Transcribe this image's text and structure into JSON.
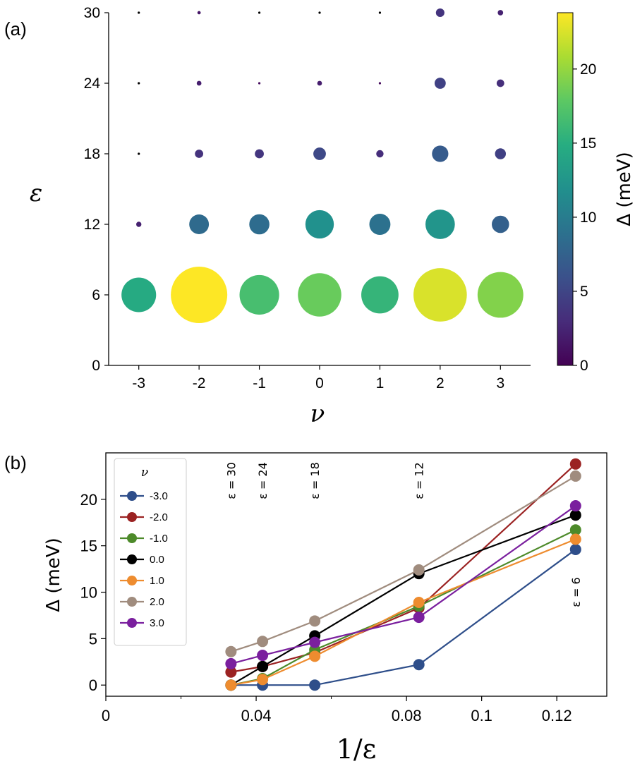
{
  "chart_data": [
    {
      "panel_label": "(a)",
      "type": "scatter",
      "xlabel": "ν",
      "ylabel": "ε",
      "x_ticks": [
        "-3",
        "-2",
        "-1",
        "0",
        "1",
        "2",
        "3"
      ],
      "y_ticks": [
        "0",
        "6",
        "12",
        "18",
        "24",
        "30"
      ],
      "xlim": [
        -3.5,
        3.5
      ],
      "ylim": [
        0,
        30
      ],
      "colorbar": {
        "label": "Δ (meV)",
        "range": [
          0,
          23.8
        ],
        "ticks": [
          "0",
          "5",
          "10",
          "15",
          "20"
        ],
        "colormap": [
          "#440154",
          "#472c7a",
          "#3b518b",
          "#2c718e",
          "#21908d",
          "#27ad81",
          "#5cc863",
          "#aadc32",
          "#fde725"
        ]
      },
      "points": [
        {
          "nu": -3,
          "eps": 30,
          "delta": 0.0
        },
        {
          "nu": -2,
          "eps": 30,
          "delta": 1.4
        },
        {
          "nu": -1,
          "eps": 30,
          "delta": 0.0
        },
        {
          "nu": 0,
          "eps": 30,
          "delta": 0.0
        },
        {
          "nu": 1,
          "eps": 30,
          "delta": 0.0
        },
        {
          "nu": 2,
          "eps": 30,
          "delta": 3.6
        },
        {
          "nu": 3,
          "eps": 30,
          "delta": 2.3
        },
        {
          "nu": -3,
          "eps": 24,
          "delta": 0.0
        },
        {
          "nu": -2,
          "eps": 24,
          "delta": 2.0
        },
        {
          "nu": -1,
          "eps": 24,
          "delta": 0.7
        },
        {
          "nu": 0,
          "eps": 24,
          "delta": 2.0
        },
        {
          "nu": 1,
          "eps": 24,
          "delta": 0.6
        },
        {
          "nu": 2,
          "eps": 24,
          "delta": 4.7
        },
        {
          "nu": 3,
          "eps": 24,
          "delta": 3.2
        },
        {
          "nu": -3,
          "eps": 18,
          "delta": 0.0
        },
        {
          "nu": -2,
          "eps": 18,
          "delta": 3.5
        },
        {
          "nu": -1,
          "eps": 18,
          "delta": 3.8
        },
        {
          "nu": 0,
          "eps": 18,
          "delta": 5.3
        },
        {
          "nu": 1,
          "eps": 18,
          "delta": 3.1
        },
        {
          "nu": 2,
          "eps": 18,
          "delta": 6.9
        },
        {
          "nu": 3,
          "eps": 18,
          "delta": 4.6
        },
        {
          "nu": -3,
          "eps": 12,
          "delta": 2.2
        },
        {
          "nu": -2,
          "eps": 12,
          "delta": 8.3
        },
        {
          "nu": -1,
          "eps": 12,
          "delta": 8.5
        },
        {
          "nu": 0,
          "eps": 12,
          "delta": 12.0
        },
        {
          "nu": 1,
          "eps": 12,
          "delta": 8.9
        },
        {
          "nu": 2,
          "eps": 12,
          "delta": 12.4
        },
        {
          "nu": 3,
          "eps": 12,
          "delta": 7.3
        },
        {
          "nu": -3,
          "eps": 6,
          "delta": 14.6
        },
        {
          "nu": -2,
          "eps": 6,
          "delta": 23.8
        },
        {
          "nu": -1,
          "eps": 6,
          "delta": 16.7
        },
        {
          "nu": 0,
          "eps": 6,
          "delta": 18.3
        },
        {
          "nu": 1,
          "eps": 6,
          "delta": 15.7
        },
        {
          "nu": 2,
          "eps": 6,
          "delta": 22.5
        },
        {
          "nu": 3,
          "eps": 6,
          "delta": 19.3
        }
      ]
    },
    {
      "panel_label": "(b)",
      "type": "line",
      "xlabel": "1/ε",
      "ylabel": "Δ (meV)",
      "xlim": [
        0,
        0.1333
      ],
      "ylim": [
        -1.2,
        25
      ],
      "x_ticks": [
        {
          "value": 0,
          "label": "0"
        },
        {
          "value": 0.04,
          "label": "0.04"
        },
        {
          "value": 0.08,
          "label": "0.08"
        },
        {
          "value": 0.1,
          "label": "0.1"
        },
        {
          "value": 0.12,
          "label": "0.12"
        }
      ],
      "y_ticks": [
        {
          "value": 0,
          "label": "0"
        },
        {
          "value": 5,
          "label": "5"
        },
        {
          "value": 10,
          "label": "10"
        },
        {
          "value": 15,
          "label": "15"
        },
        {
          "value": 20,
          "label": "20"
        }
      ],
      "x": [
        0.0333,
        0.0417,
        0.0556,
        0.0833,
        0.125
      ],
      "annotations": [
        {
          "text": "ε = 30",
          "x": 0.0333,
          "y": 22.0
        },
        {
          "text": "ε = 24",
          "x": 0.0417,
          "y": 22.0
        },
        {
          "text": "ε = 18",
          "x": 0.0556,
          "y": 22.0
        },
        {
          "text": "ε = 12",
          "x": 0.0833,
          "y": 22.0
        },
        {
          "text": "ε = 6",
          "x": 0.125,
          "y": 10.0
        }
      ],
      "legend_title": "ν",
      "legend_position": "top-left",
      "series": [
        {
          "name": "-3.0",
          "color": "#2e4e8a",
          "values": [
            0.0,
            0.0,
            0.0,
            2.2,
            14.6
          ]
        },
        {
          "name": "-2.0",
          "color": "#9b2222",
          "values": [
            1.4,
            2.0,
            3.5,
            8.3,
            23.8
          ]
        },
        {
          "name": "-1.0",
          "color": "#4d8a2a",
          "values": [
            0.0,
            0.7,
            3.8,
            8.5,
            16.7
          ]
        },
        {
          "name": "0.0",
          "color": "#000000",
          "values": [
            0.0,
            2.0,
            5.3,
            12.0,
            18.3
          ]
        },
        {
          "name": "1.0",
          "color": "#ee8c2f",
          "values": [
            0.0,
            0.6,
            3.1,
            8.9,
            15.7
          ]
        },
        {
          "name": "2.0",
          "color": "#a08c7e",
          "values": [
            3.6,
            4.7,
            6.9,
            12.4,
            22.5
          ]
        },
        {
          "name": "3.0",
          "color": "#7a1f9e",
          "values": [
            2.3,
            3.2,
            4.6,
            7.3,
            19.3
          ]
        }
      ]
    }
  ]
}
